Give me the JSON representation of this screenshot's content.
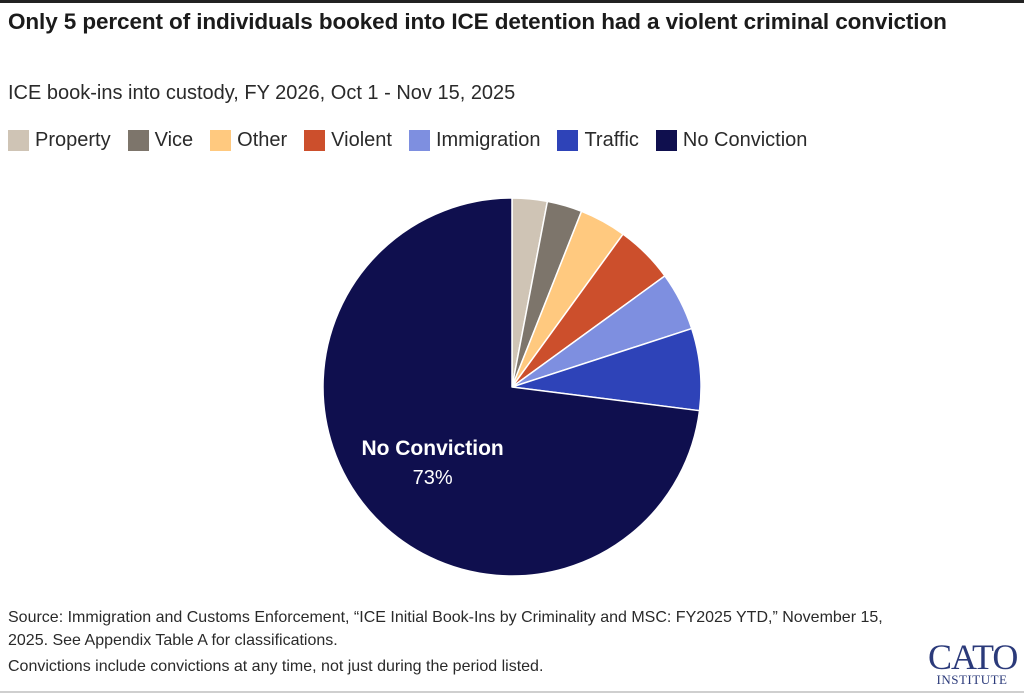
{
  "header": {
    "title": "Only 5 percent of individuals booked into ICE detention had a violent criminal conviction",
    "subtitle": "ICE book-ins into custody, FY 2026, Oct 1 - Nov 15, 2025"
  },
  "chart_data": {
    "type": "pie",
    "title": "Only 5 percent of individuals booked into ICE detention had a violent criminal conviction",
    "subtitle": "ICE book-ins into custody, FY 2026, Oct 1 - Nov 15, 2025",
    "legend_position": "top",
    "slices": [
      {
        "label": "Property",
        "value": 3,
        "color": "#CFC4B5"
      },
      {
        "label": "Vice",
        "value": 3,
        "color": "#7D756B"
      },
      {
        "label": "Other",
        "value": 4,
        "color": "#FFC97F"
      },
      {
        "label": "Violent",
        "value": 5,
        "color": "#CC4F2C"
      },
      {
        "label": "Immigration",
        "value": 5,
        "color": "#7E8FE0"
      },
      {
        "label": "Traffic",
        "value": 7,
        "color": "#2E43B8"
      },
      {
        "label": "No Conviction",
        "value": 73,
        "color": "#0F0F4E"
      }
    ],
    "annotations": [
      {
        "slice": "No Conviction",
        "label": "No Conviction",
        "value_label": "73%"
      }
    ]
  },
  "footer": {
    "source": "Source: Immigration and Customs Enforcement, “ICE Initial Book-Ins by Criminality and MSC: FY2025 YTD,” November 15, 2025. See Appendix Table A for classifications.",
    "note": "Convictions include convictions at any time, not just during the period listed."
  },
  "logo": {
    "main": "CATO",
    "sub": "INSTITUTE"
  }
}
